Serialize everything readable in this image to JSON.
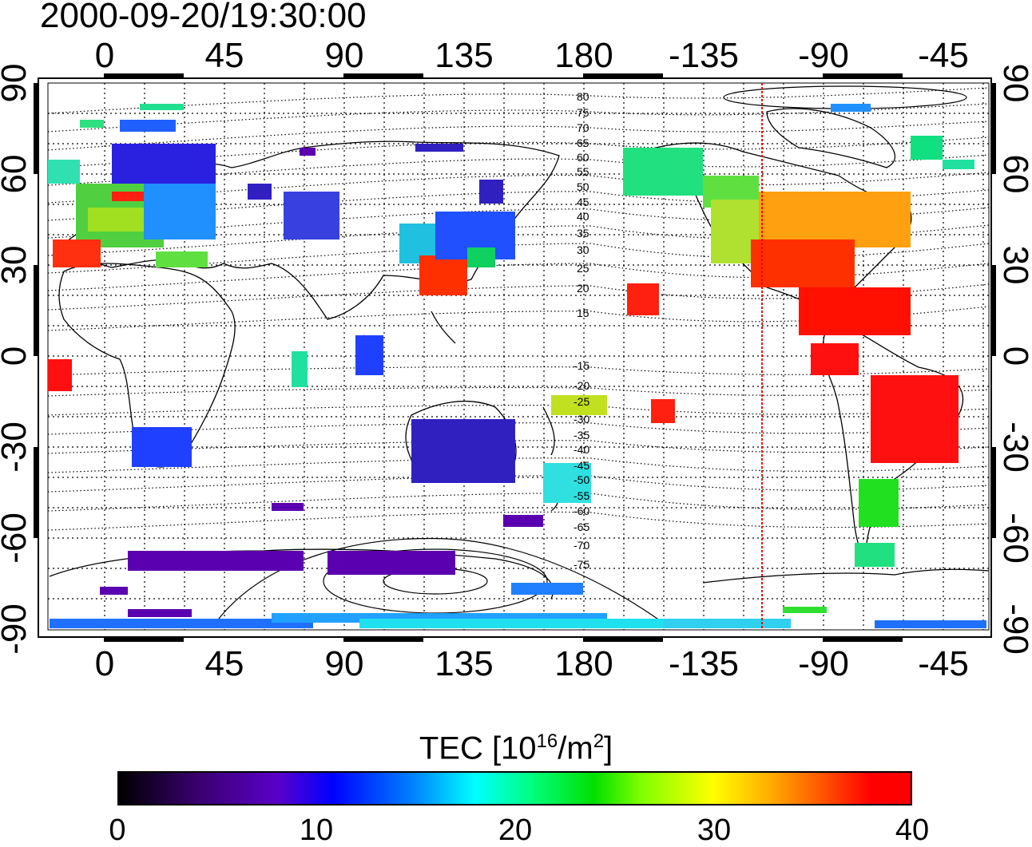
{
  "title": "2000-09-20/19:30:00",
  "map": {
    "lon_ticks": [
      "0",
      "45",
      "90",
      "135",
      "180",
      "-135",
      "-90",
      "-45"
    ],
    "lat_ticks": [
      "90",
      "60",
      "30",
      "0",
      "-30",
      "-60",
      "-90"
    ],
    "contour_labels": [
      "80",
      "75",
      "70",
      "65",
      "60",
      "55",
      "50",
      "45",
      "40",
      "35",
      "30",
      "25",
      "20",
      "15",
      "-15",
      "-20",
      "-25",
      "-30",
      "-35",
      "-40",
      "-45",
      "-50",
      "-55",
      "-60",
      "-65",
      "-70",
      "-75"
    ],
    "marker_line_color": "#ff0000"
  },
  "colorbar": {
    "title_prefix": "TEC  [10",
    "title_exp1": "16",
    "title_mid": "/m",
    "title_exp2": "2",
    "title_suffix": "]",
    "ticks": [
      "0",
      "10",
      "20",
      "30",
      "40"
    ],
    "range": [
      0,
      40
    ],
    "colors": [
      "#000000",
      "#5a00c8",
      "#0000ff",
      "#00ffff",
      "#00e000",
      "#ffff00",
      "#ff0000"
    ]
  }
}
